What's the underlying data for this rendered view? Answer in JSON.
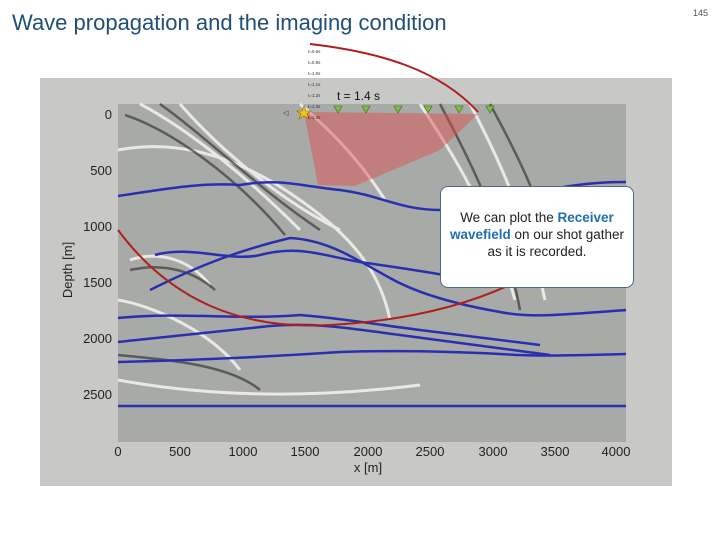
{
  "slide": {
    "title": "Wave propagation and the imaging condition",
    "number": "145"
  },
  "figure": {
    "time_label": "t = 1.4 s",
    "time_list": [
      "t=0.6s",
      "t=0.8s",
      "t=1.0s",
      "t=1.1s",
      "t=1.2s",
      "t=1.3s",
      "t=1.4s"
    ],
    "ylabel": "Depth [m]",
    "xlabel": "x [m]",
    "xticks": [
      "0",
      "500",
      "1000",
      "1500",
      "2000",
      "2500",
      "3000",
      "3500",
      "4000"
    ],
    "yticks": [
      "0",
      "500",
      "1000",
      "1500",
      "2000",
      "2500"
    ],
    "colors": {
      "reflector": "#2a2fb0",
      "arrow": "#b01e1e",
      "wedge": "#e24a4a",
      "receiver": "#7fbf3f",
      "source": "#f2c21a"
    }
  },
  "callout": {
    "part1": "We can plot the ",
    "highlight": "Receiver wavefield",
    "part2": " on our shot gather as it is recorded."
  }
}
